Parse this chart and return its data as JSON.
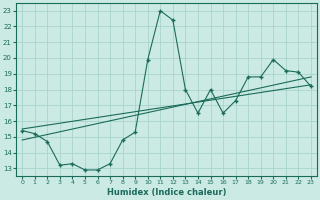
{
  "xlabel": "Humidex (Indice chaleur)",
  "bg_color": "#cceae4",
  "line_color": "#1a6b5a",
  "grid_color": "#a8d4cc",
  "xlim": [
    -0.5,
    23.5
  ],
  "ylim": [
    12.5,
    23.5
  ],
  "xticks": [
    0,
    1,
    2,
    3,
    4,
    5,
    6,
    7,
    8,
    9,
    10,
    11,
    12,
    13,
    14,
    15,
    16,
    17,
    18,
    19,
    20,
    21,
    22,
    23
  ],
  "yticks": [
    13,
    14,
    15,
    16,
    17,
    18,
    19,
    20,
    21,
    22,
    23
  ],
  "line1_x": [
    0,
    1,
    2,
    3,
    4,
    5,
    6,
    7,
    8,
    9,
    10,
    11,
    12,
    13,
    14,
    15,
    16,
    17,
    18,
    19,
    20,
    21,
    22,
    23
  ],
  "line1_y": [
    15.4,
    15.2,
    14.7,
    13.2,
    13.3,
    12.9,
    12.9,
    13.3,
    14.8,
    15.3,
    19.9,
    23.0,
    22.4,
    18.0,
    16.5,
    18.0,
    16.5,
    17.3,
    18.8,
    18.8,
    19.9,
    19.2,
    19.1,
    18.2
  ],
  "line2_x": [
    0,
    23
  ],
  "line2_y": [
    15.5,
    18.3
  ],
  "line3_x": [
    0,
    23
  ],
  "line3_y": [
    14.8,
    18.8
  ],
  "figsize": [
    3.2,
    2.0
  ],
  "dpi": 100
}
